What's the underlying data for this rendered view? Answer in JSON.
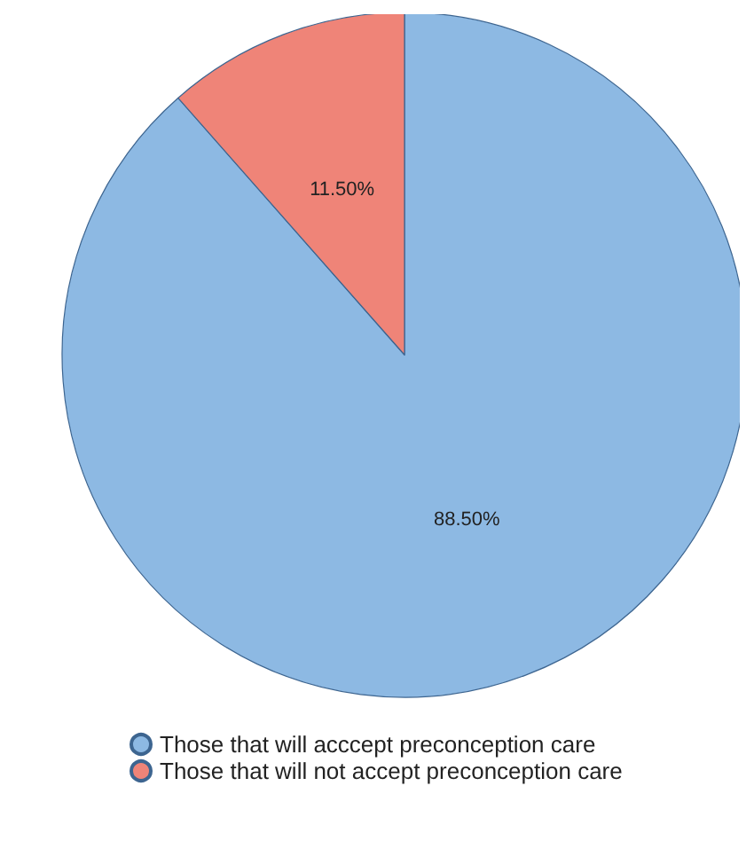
{
  "chart_data": {
    "type": "pie",
    "categories": [
      "Those that will acccept preconception care",
      "Those that will not accept preconception care"
    ],
    "values": [
      88.5,
      11.5
    ],
    "colors": [
      "#8db9e3",
      "#ef8478"
    ],
    "value_labels": [
      "88.50%",
      "11.50%"
    ],
    "legend": "bottom"
  }
}
